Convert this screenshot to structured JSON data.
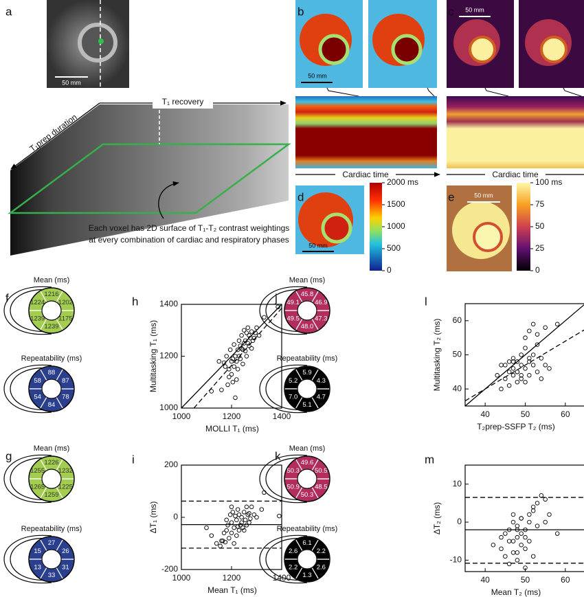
{
  "figure": {
    "panel_labels": [
      "a",
      "b",
      "c",
      "d",
      "e",
      "f",
      "g",
      "h",
      "i",
      "j",
      "k",
      "l",
      "m"
    ],
    "scale_bar": "50 mm",
    "axis_t1_recovery": "T₁ recovery",
    "axis_t1prep": "T₁prep duration",
    "cardiac_time": "Cardiac time",
    "caption_lines": [
      "Each voxel has 2D surface of T₁-T₂ contrast weightings",
      "at every combination of cardiac and respiratory phases"
    ],
    "colorbars": [
      {
        "lim": [
          0,
          2000
        ],
        "ticks": [
          {
            "value": 2000,
            "label": "2000 ms"
          },
          1500,
          1000,
          500,
          0
        ]
      },
      {
        "lim": [
          0,
          100
        ],
        "ticks": [
          {
            "value": 100,
            "label": "100 ms"
          },
          75,
          50,
          25,
          0
        ]
      }
    ],
    "bullseyes": [
      {
        "title": "Mean (ms)",
        "color": "#a3cd4e",
        "text_color": "#333333",
        "values": [
          1216,
          1224,
          1239,
          1239,
          1175,
          1202
        ]
      },
      {
        "title": "Repeatability (ms)",
        "color": "#2b3f8f",
        "text_color": "#ffffff",
        "values": [
          88,
          58,
          54,
          84,
          78,
          87
        ]
      },
      {
        "title": "Mean (ms)",
        "color": "#a3cd4e",
        "text_color": "#333333",
        "values": [
          1226,
          1255,
          1265,
          1259,
          1225,
          1232
        ]
      },
      {
        "title": "Repeatability (ms)",
        "color": "#2b3f8f",
        "text_color": "#ffffff",
        "values": [
          27,
          15,
          13,
          33,
          31,
          26
        ]
      },
      {
        "title": "Mean (ms)",
        "color": "#b22d5e",
        "text_color": "#ffffff",
        "values": [
          45.8,
          49.1,
          49.5,
          48,
          47.3,
          46.9
        ],
        "value_labels": [
          "45.8",
          "49.1",
          "49.5",
          "48.0",
          "47.3",
          "46.9"
        ]
      },
      {
        "title": "Repeatability (ms)",
        "color": "#000000",
        "text_color": "#ffffff",
        "values": [
          5.9,
          5.2,
          7,
          5.1,
          4.7,
          4.3
        ],
        "value_labels": [
          "5.9",
          "5.2",
          "7.0",
          "5.1",
          "4.7",
          "4.3"
        ]
      },
      {
        "title": "Mean (ms)",
        "color": "#b22d5e",
        "text_color": "#ffffff",
        "values": [
          49.6,
          50.3,
          50.9,
          50.3,
          48.5,
          50.5
        ]
      },
      {
        "title": "Repeatability (ms)",
        "color": "#000000",
        "text_color": "#ffffff",
        "values": [
          6.1,
          2.6,
          2.2,
          1.3,
          2.6,
          2.2
        ]
      }
    ]
  },
  "chart_data": [
    {
      "type": "scatter",
      "x_label": "MOLLI T₁ (ms)",
      "y_label": "Multitasking T₁ (ms)",
      "xlim": [
        1000,
        1400
      ],
      "ylim": [
        1000,
        1400
      ],
      "xticks": [
        1000,
        1200,
        1400
      ],
      "yticks": [
        1000,
        1200,
        1400
      ],
      "x": [
        1120,
        1150,
        1160,
        1170,
        1180,
        1185,
        1190,
        1195,
        1200,
        1200,
        1205,
        1210,
        1210,
        1215,
        1220,
        1220,
        1225,
        1225,
        1230,
        1230,
        1235,
        1235,
        1240,
        1240,
        1245,
        1245,
        1250,
        1250,
        1255,
        1255,
        1260,
        1260,
        1265,
        1265,
        1270,
        1270,
        1275,
        1280,
        1280,
        1285,
        1290,
        1295,
        1300,
        1310,
        1330,
        1385,
        1205,
        1215,
        1190,
        1175
      ],
      "values": [
        1065,
        1180,
        1070,
        1175,
        1200,
        1090,
        1150,
        1225,
        1180,
        1130,
        1190,
        1160,
        1245,
        1200,
        1110,
        1180,
        1225,
        1150,
        1260,
        1200,
        1240,
        1190,
        1230,
        1280,
        1225,
        1170,
        1250,
        1300,
        1220,
        1260,
        1290,
        1200,
        1250,
        1310,
        1240,
        1280,
        1270,
        1295,
        1230,
        1260,
        1270,
        1290,
        1310,
        1280,
        1350,
        1390,
        1100,
        1040,
        1120,
        1160
      ],
      "lines": [
        {
          "style": "solid",
          "x": [
            1000,
            1400
          ],
          "y": [
            1000,
            1400
          ]
        },
        {
          "style": "dashed",
          "x": [
            1050,
            1400
          ],
          "y": [
            1000,
            1385
          ]
        }
      ]
    },
    {
      "type": "scatter",
      "x_label": "Mean T₁ (ms)",
      "y_label": "ΔT₁ (ms)",
      "xlim": [
        1000,
        1400
      ],
      "ylim": [
        -200,
        200
      ],
      "xticks": [
        1000,
        1200,
        1400
      ],
      "yticks": [
        -200,
        0,
        200
      ],
      "x": [
        1100,
        1120,
        1140,
        1155,
        1165,
        1170,
        1175,
        1180,
        1185,
        1190,
        1195,
        1200,
        1200,
        1205,
        1210,
        1215,
        1220,
        1220,
        1225,
        1230,
        1230,
        1235,
        1240,
        1240,
        1245,
        1250,
        1255,
        1260,
        1260,
        1265,
        1270,
        1275,
        1280,
        1290,
        1300,
        1320,
        1330,
        1390,
        1180,
        1210,
        1250,
        1200,
        1160,
        1225,
        1270
      ],
      "values": [
        -40,
        -70,
        -100,
        -110,
        -90,
        -60,
        -95,
        -50,
        -30,
        -80,
        10,
        -20,
        -60,
        20,
        -40,
        5,
        -10,
        -70,
        30,
        -50,
        10,
        -30,
        -20,
        0,
        -40,
        20,
        -10,
        40,
        -30,
        10,
        -20,
        -5,
        40,
        10,
        0,
        30,
        95,
        5,
        -10,
        -100,
        -50,
        40,
        -90,
        -35,
        15
      ],
      "hlines": [
        {
          "style": "dashed",
          "y": 62
        },
        {
          "style": "solid",
          "y": -28
        },
        {
          "style": "dashed",
          "y": -118
        }
      ]
    },
    {
      "type": "scatter",
      "x_label": "T₂prep-SSFP T₂ (ms)",
      "y_label": "Multitasking T₂ (ms)",
      "xlim": [
        35,
        65
      ],
      "ylim": [
        35,
        65
      ],
      "xticks": [
        40,
        50,
        60
      ],
      "yticks": [
        40,
        50,
        60
      ],
      "x": [
        43,
        44,
        45,
        45,
        46,
        46,
        47,
        47,
        47,
        48,
        48,
        48,
        49,
        49,
        49,
        50,
        50,
        50,
        51,
        51,
        51,
        52,
        52,
        52,
        53,
        53,
        54,
        54,
        55,
        55,
        56,
        58,
        46,
        47,
        49,
        50,
        51,
        53,
        44,
        48
      ],
      "values": [
        44,
        40,
        47,
        43,
        48,
        41,
        46,
        44,
        49,
        45,
        42,
        48,
        47,
        50,
        43,
        46,
        52,
        55,
        48,
        44,
        57,
        50,
        47,
        59,
        45,
        53,
        49,
        43,
        58,
        47,
        46,
        59,
        45,
        48,
        44,
        42,
        49,
        56,
        47,
        45
      ],
      "lines": [
        {
          "style": "solid",
          "x": [
            35,
            65
          ],
          "y": [
            35,
            65
          ]
        },
        {
          "style": "dashed",
          "x": [
            35,
            65
          ],
          "y": [
            36.5,
            57.5
          ]
        }
      ]
    },
    {
      "type": "scatter",
      "x_label": "Mean T₂ (ms)",
      "y_label": "ΔT₂ (ms)",
      "xlim": [
        35,
        65
      ],
      "ylim": [
        -13,
        15
      ],
      "xticks": [
        40,
        50,
        60
      ],
      "yticks": [
        -10,
        0,
        10
      ],
      "x": [
        42,
        44,
        45,
        45,
        46,
        46,
        47,
        47,
        47,
        48,
        48,
        48,
        49,
        49,
        49,
        50,
        50,
        50,
        51,
        51,
        51,
        52,
        52,
        53,
        53,
        54,
        55,
        55,
        56,
        58,
        46,
        47,
        49,
        50,
        52,
        44,
        48,
        48
      ],
      "values": [
        -6,
        -7,
        -3,
        -9,
        -2,
        -5,
        0,
        -8,
        2,
        -4,
        -1,
        -10,
        -3,
        1,
        -6,
        -2,
        -7,
        -4,
        0,
        -5,
        2,
        3,
        -9,
        5,
        -1,
        7,
        6,
        0,
        2,
        -3,
        -11,
        -5,
        1,
        -12,
        4,
        -4,
        -2,
        -8
      ],
      "hlines": [
        {
          "style": "dashed",
          "y": 6.5
        },
        {
          "style": "solid",
          "y": -2
        },
        {
          "style": "dashed",
          "y": -10.8
        }
      ]
    }
  ]
}
